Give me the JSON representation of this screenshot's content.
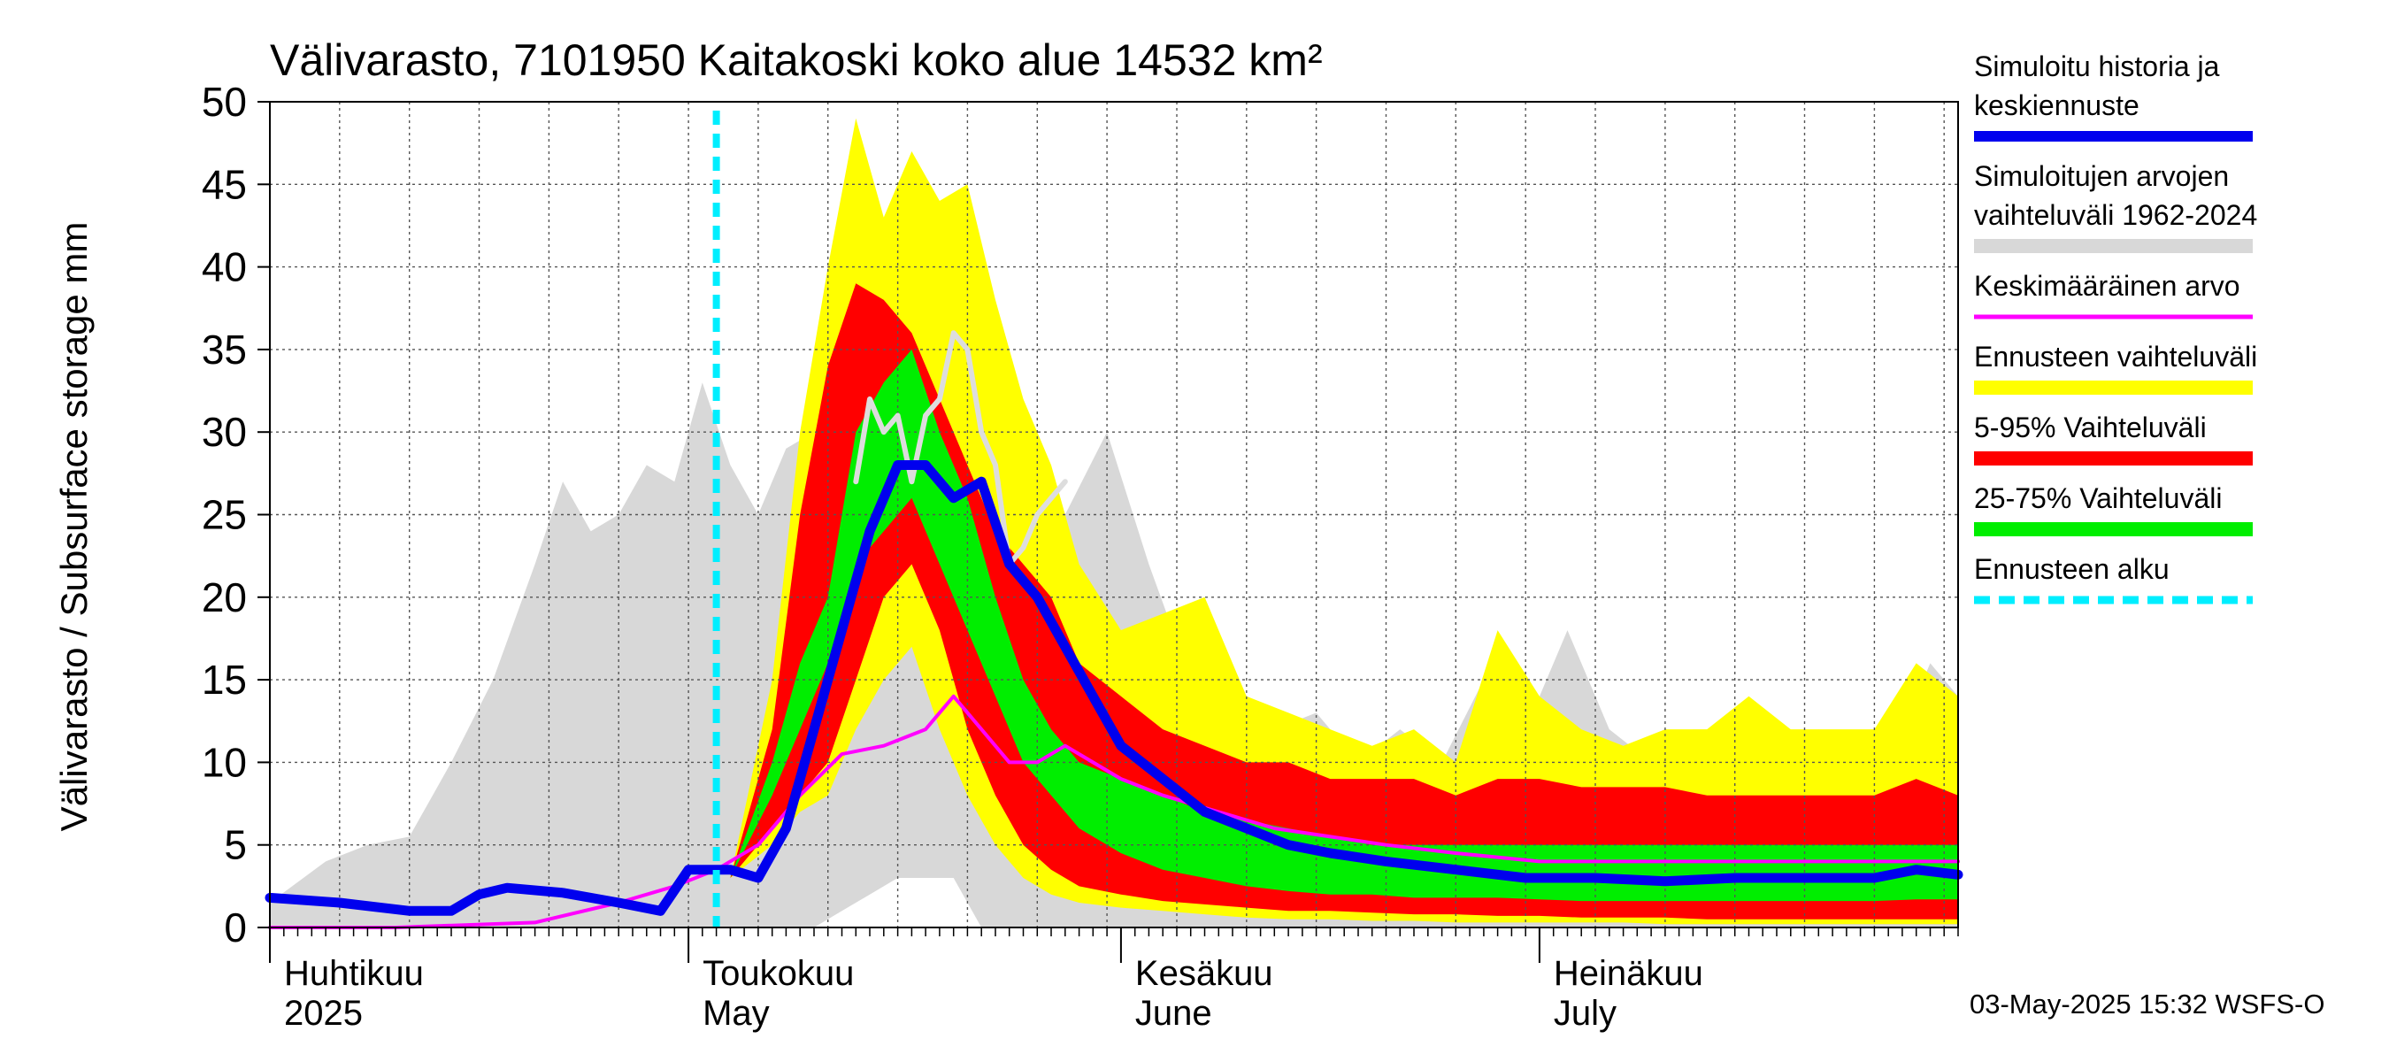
{
  "chart_data": {
    "type": "area",
    "title": "Välivarasto, 7101950 Kaitakoski koko alue 14532 km²",
    "ylabel": "Välivarasto / Subsurface storage  mm",
    "ylim": [
      0,
      50
    ],
    "yticks": [
      0,
      5,
      10,
      15,
      20,
      25,
      30,
      35,
      40,
      45,
      50
    ],
    "xlim": [
      "2025-04-01",
      "2025-07-31"
    ],
    "grid": true,
    "legend_position": "right",
    "month_labels": [
      {
        "date": "2025-04-01",
        "fi": "Huhtikuu",
        "en": "2025"
      },
      {
        "date": "2025-05-01",
        "fi": "Toukokuu",
        "en": "May"
      },
      {
        "date": "2025-06-01",
        "fi": "Kesäkuu",
        "en": "June"
      },
      {
        "date": "2025-07-01",
        "fi": "Heinäkuu",
        "en": "July"
      }
    ],
    "footer": "03-May-2025 15:32 WSFS-O",
    "forecast_start": "2025-05-03",
    "colors": {
      "history": "#0000ee",
      "range": "#d8d8d8",
      "mean": "#ff00ff",
      "forecast_range": "#ffff00",
      "p5_95": "#ff0000",
      "p25_75": "#00ee00",
      "forecast_start": "#00eeff",
      "grid": "#555555",
      "light_line": "#dddddd"
    },
    "legend": [
      {
        "key": "history",
        "lines": [
          "Simuloitu historia ja",
          "keskiennuste"
        ],
        "style": "thick"
      },
      {
        "key": "range",
        "lines": [
          "Simuloitujen arvojen",
          "vaihteluväli 1962-2024"
        ],
        "style": "band"
      },
      {
        "key": "mean",
        "lines": [
          "Keskimääräinen arvo"
        ],
        "style": "thin"
      },
      {
        "key": "forecast_range",
        "lines": [
          "Ennusteen vaihteluväli"
        ],
        "style": "band"
      },
      {
        "key": "p5_95",
        "lines": [
          "5-95% Vaihteluväli"
        ],
        "style": "band"
      },
      {
        "key": "p25_75",
        "lines": [
          "25-75% Vaihteluväli"
        ],
        "style": "band"
      },
      {
        "key": "forecast_start",
        "lines": [
          "Ennusteen alku"
        ],
        "style": "dashed"
      }
    ],
    "series": {
      "range_band": {
        "x": [
          "2025-04-01",
          "2025-04-05",
          "2025-04-08",
          "2025-04-11",
          "2025-04-14",
          "2025-04-17",
          "2025-04-20",
          "2025-04-22",
          "2025-04-24",
          "2025-04-26",
          "2025-04-28",
          "2025-04-30",
          "2025-05-02",
          "2025-05-04",
          "2025-05-06",
          "2025-05-08",
          "2025-05-10",
          "2025-05-12",
          "2025-05-14",
          "2025-05-16",
          "2025-05-18",
          "2025-05-20",
          "2025-05-22",
          "2025-05-25",
          "2025-05-28",
          "2025-05-31",
          "2025-06-03",
          "2025-06-06",
          "2025-06-09",
          "2025-06-12",
          "2025-06-15",
          "2025-06-18",
          "2025-06-21",
          "2025-06-24",
          "2025-06-27",
          "2025-06-30",
          "2025-07-03",
          "2025-07-06",
          "2025-07-09",
          "2025-07-12",
          "2025-07-15",
          "2025-07-18",
          "2025-07-21",
          "2025-07-24",
          "2025-07-27",
          "2025-07-29",
          "2025-07-31"
        ],
        "lower": [
          0,
          0,
          0,
          0,
          0,
          0,
          0,
          0,
          0,
          0,
          0,
          0,
          0,
          0,
          0,
          0,
          0,
          1,
          2,
          3,
          3,
          3,
          0,
          0,
          0,
          0,
          0,
          0,
          0,
          0,
          0,
          0,
          0,
          0,
          0,
          0,
          0,
          0,
          0,
          0,
          0,
          0,
          0,
          0,
          0,
          0,
          0
        ],
        "upper": [
          1.5,
          4,
          5,
          5.5,
          10,
          15,
          22,
          27,
          24,
          25,
          28,
          27,
          33,
          28,
          25,
          29,
          30,
          27,
          24,
          22,
          20,
          22,
          20,
          14,
          25,
          30,
          22,
          15,
          10,
          12,
          13,
          10,
          12,
          10,
          15,
          12,
          18,
          12,
          10,
          12,
          12,
          10,
          12,
          10,
          12,
          16,
          14
        ]
      },
      "forecast_band": {
        "x": [
          "2025-05-04",
          "2025-05-07",
          "2025-05-09",
          "2025-05-11",
          "2025-05-13",
          "2025-05-15",
          "2025-05-17",
          "2025-05-19",
          "2025-05-21",
          "2025-05-23",
          "2025-05-25",
          "2025-05-27",
          "2025-05-29",
          "2025-06-01",
          "2025-06-04",
          "2025-06-07",
          "2025-06-10",
          "2025-06-13",
          "2025-06-16",
          "2025-06-19",
          "2025-06-22",
          "2025-06-25",
          "2025-06-28",
          "2025-07-01",
          "2025-07-04",
          "2025-07-07",
          "2025-07-10",
          "2025-07-13",
          "2025-07-16",
          "2025-07-19",
          "2025-07-22",
          "2025-07-25",
          "2025-07-28",
          "2025-07-31"
        ],
        "lower": [
          3,
          5,
          7,
          8,
          12,
          15,
          17,
          12,
          8,
          5,
          3,
          2,
          1.5,
          1.2,
          1,
          0.8,
          0.6,
          0.5,
          0.5,
          0.4,
          0.4,
          0.3,
          0.3,
          0.3,
          0.3,
          0.3,
          0.2,
          0.2,
          0.2,
          0.2,
          0.2,
          0.2,
          0.2,
          0.2
        ],
        "upper": [
          3,
          15,
          30,
          40,
          49,
          43,
          47,
          44,
          45,
          38,
          32,
          28,
          22,
          18,
          19,
          20,
          14,
          13,
          12,
          11,
          12,
          10,
          18,
          14,
          12,
          11,
          12,
          12,
          14,
          12,
          12,
          12,
          16,
          14
        ]
      },
      "p5_95": {
        "x": [
          "2025-05-04",
          "2025-05-07",
          "2025-05-09",
          "2025-05-11",
          "2025-05-13",
          "2025-05-15",
          "2025-05-17",
          "2025-05-19",
          "2025-05-21",
          "2025-05-23",
          "2025-05-25",
          "2025-05-27",
          "2025-05-29",
          "2025-06-01",
          "2025-06-04",
          "2025-06-07",
          "2025-06-10",
          "2025-06-13",
          "2025-06-16",
          "2025-06-19",
          "2025-06-22",
          "2025-06-25",
          "2025-06-28",
          "2025-07-01",
          "2025-07-04",
          "2025-07-07",
          "2025-07-10",
          "2025-07-13",
          "2025-07-16",
          "2025-07-19",
          "2025-07-22",
          "2025-07-25",
          "2025-07-28",
          "2025-07-31"
        ],
        "lower": [
          3,
          6,
          8,
          10,
          15,
          20,
          22,
          18,
          12,
          8,
          5,
          3.5,
          2.5,
          2,
          1.6,
          1.4,
          1.2,
          1,
          1,
          0.9,
          0.8,
          0.8,
          0.7,
          0.7,
          0.6,
          0.6,
          0.6,
          0.5,
          0.5,
          0.5,
          0.5,
          0.5,
          0.5,
          0.5
        ],
        "upper": [
          3,
          12,
          25,
          34,
          39,
          38,
          36,
          32,
          28,
          24,
          22,
          20,
          16,
          14,
          12,
          11,
          10,
          10,
          9,
          9,
          9,
          8,
          9,
          9,
          8.5,
          8.5,
          8.5,
          8,
          8,
          8,
          8,
          8,
          9,
          8
        ]
      },
      "p25_75": {
        "x": [
          "2025-05-04",
          "2025-05-07",
          "2025-05-09",
          "2025-05-11",
          "2025-05-13",
          "2025-05-15",
          "2025-05-17",
          "2025-05-19",
          "2025-05-21",
          "2025-05-23",
          "2025-05-25",
          "2025-05-27",
          "2025-05-29",
          "2025-06-01",
          "2025-06-04",
          "2025-06-07",
          "2025-06-10",
          "2025-06-13",
          "2025-06-16",
          "2025-06-19",
          "2025-06-22",
          "2025-06-25",
          "2025-06-28",
          "2025-07-01",
          "2025-07-04",
          "2025-07-07",
          "2025-07-10",
          "2025-07-13",
          "2025-07-16",
          "2025-07-19",
          "2025-07-22",
          "2025-07-25",
          "2025-07-28",
          "2025-07-31"
        ],
        "lower": [
          3,
          8,
          12,
          16,
          22,
          24,
          26,
          22,
          18,
          14,
          10,
          8,
          6,
          4.5,
          3.5,
          3,
          2.5,
          2.2,
          2,
          2,
          1.8,
          1.8,
          1.8,
          1.7,
          1.6,
          1.6,
          1.6,
          1.6,
          1.6,
          1.6,
          1.6,
          1.6,
          1.7,
          1.7
        ],
        "upper": [
          3,
          10,
          16,
          20,
          30,
          33,
          35,
          30,
          26,
          20,
          15,
          12,
          10,
          9,
          8,
          7,
          6.5,
          6,
          5.5,
          5,
          5,
          5,
          5,
          5,
          5,
          5,
          5,
          5,
          5,
          5,
          5,
          5,
          5,
          5
        ]
      },
      "mean": {
        "x": [
          "2025-04-01",
          "2025-04-10",
          "2025-04-20",
          "2025-04-26",
          "2025-04-30",
          "2025-05-03",
          "2025-05-06",
          "2025-05-09",
          "2025-05-12",
          "2025-05-15",
          "2025-05-18",
          "2025-05-20",
          "2025-05-22",
          "2025-05-24",
          "2025-05-26",
          "2025-05-28",
          "2025-05-30",
          "2025-06-01",
          "2025-06-04",
          "2025-06-08",
          "2025-06-12",
          "2025-06-16",
          "2025-06-20",
          "2025-06-25",
          "2025-07-01",
          "2025-07-06",
          "2025-07-11",
          "2025-07-16",
          "2025-07-21",
          "2025-07-26",
          "2025-07-31"
        ],
        "y": [
          0,
          0,
          0.3,
          1.5,
          2.5,
          3.5,
          5,
          8,
          10.5,
          11,
          12,
          14,
          12,
          10,
          10,
          11,
          10,
          9,
          8,
          7,
          6,
          5.5,
          5,
          4.5,
          4,
          4,
          4,
          4,
          4,
          4,
          4
        ]
      },
      "history": {
        "x": [
          "2025-04-01",
          "2025-04-06",
          "2025-04-11",
          "2025-04-14",
          "2025-04-16",
          "2025-04-18",
          "2025-04-22",
          "2025-04-26",
          "2025-04-29",
          "2025-05-01",
          "2025-05-04",
          "2025-05-06",
          "2025-05-08",
          "2025-05-10",
          "2025-05-12",
          "2025-05-14",
          "2025-05-16",
          "2025-05-18",
          "2025-05-20",
          "2025-05-22",
          "2025-05-24",
          "2025-05-26",
          "2025-05-28",
          "2025-05-30",
          "2025-06-01",
          "2025-06-04",
          "2025-06-07",
          "2025-06-10",
          "2025-06-13",
          "2025-06-16",
          "2025-06-20",
          "2025-06-25",
          "2025-06-30",
          "2025-07-05",
          "2025-07-10",
          "2025-07-15",
          "2025-07-20",
          "2025-07-25",
          "2025-07-28",
          "2025-07-31"
        ],
        "y": [
          1.8,
          1.5,
          1,
          1,
          2,
          2.4,
          2.1,
          1.5,
          1,
          3.5,
          3.5,
          3,
          6,
          12,
          18,
          24,
          28,
          28,
          26,
          27,
          22,
          20,
          17,
          14,
          11,
          9,
          7,
          6,
          5,
          4.5,
          4,
          3.5,
          3,
          3,
          2.8,
          3,
          3,
          3,
          3.5,
          3.2
        ]
      },
      "light_line": {
        "x": [
          "2025-05-13",
          "2025-05-14",
          "2025-05-15",
          "2025-05-16",
          "2025-05-17",
          "2025-05-18",
          "2025-05-19",
          "2025-05-20",
          "2025-05-21",
          "2025-05-22",
          "2025-05-23",
          "2025-05-24",
          "2025-05-25",
          "2025-05-26",
          "2025-05-27",
          "2025-05-28"
        ],
        "y": [
          27,
          32,
          30,
          31,
          27,
          31,
          32,
          36,
          35,
          30,
          28,
          22,
          23,
          25,
          26,
          27
        ]
      }
    }
  }
}
